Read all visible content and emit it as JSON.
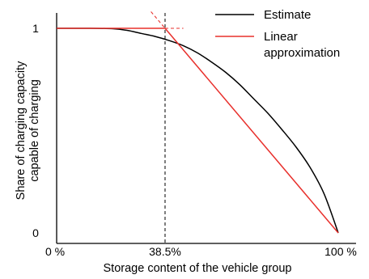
{
  "chart_data": {
    "type": "line",
    "title": "",
    "xlabel": "Storage content of the vehicle group",
    "ylabel": [
      "Share of charging capacity",
      "capable of charging"
    ],
    "xlim": [
      0,
      100
    ],
    "ylim": [
      0,
      1
    ],
    "x_ticks": [
      {
        "value": 0,
        "label": "0 %"
      },
      {
        "value": 38.5,
        "label": "38.5%"
      },
      {
        "value": 100,
        "label": "100 %"
      }
    ],
    "y_ticks": [
      {
        "value": 0,
        "label": "0"
      },
      {
        "value": 1,
        "label": "1"
      }
    ],
    "reference_line": {
      "x": 38.5,
      "style": "dashed",
      "color": "#000000"
    },
    "series": [
      {
        "name": "Estimate",
        "color": "#000000",
        "x": [
          0,
          10,
          20,
          25,
          30,
          35,
          40,
          45,
          50,
          55,
          60,
          65,
          70,
          75,
          80,
          85,
          90,
          95,
          100
        ],
        "y": [
          1.0,
          1.0,
          0.998,
          0.99,
          0.975,
          0.96,
          0.94,
          0.915,
          0.88,
          0.835,
          0.785,
          0.725,
          0.655,
          0.585,
          0.505,
          0.42,
          0.32,
          0.19,
          0.0
        ]
      },
      {
        "name": "Linear approximation",
        "color": "#e8302c",
        "x": [
          0,
          38.5,
          100
        ],
        "y": [
          1.0,
          1.0,
          0.0
        ]
      }
    ],
    "extension_lines": {
      "color": "#e8302c",
      "style": "dashed",
      "horizontal_to_x": 45,
      "sloped_from_x": 33.5
    },
    "legend": {
      "placement": "top-right",
      "entries": [
        {
          "label": "Estimate",
          "color": "#000000"
        },
        {
          "label": [
            "Linear",
            "approximation"
          ],
          "color": "#e8302c"
        }
      ]
    },
    "grid": false
  }
}
